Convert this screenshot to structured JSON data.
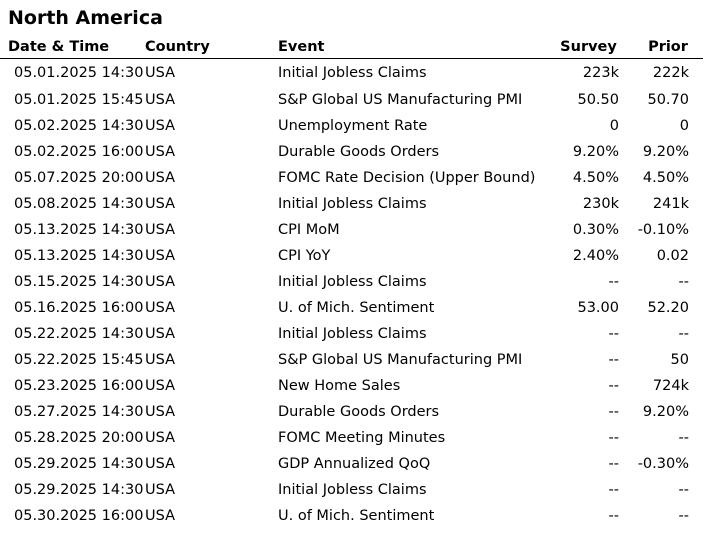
{
  "title": "North America",
  "columns": {
    "date": "Date & Time",
    "country": "Country",
    "event": "Event",
    "survey": "Survey",
    "prior": "Prior"
  },
  "rows": [
    {
      "date": "05.01.2025 14:30",
      "country": "USA",
      "event": "Initial Jobless Claims",
      "survey": "223k",
      "prior": "222k"
    },
    {
      "date": "05.01.2025 15:45",
      "country": "USA",
      "event": "S&P Global US Manufacturing PMI",
      "survey": "50.50",
      "prior": "50.70"
    },
    {
      "date": "05.02.2025 14:30",
      "country": "USA",
      "event": "Unemployment Rate",
      "survey": "0",
      "prior": "0"
    },
    {
      "date": "05.02.2025 16:00",
      "country": "USA",
      "event": "Durable Goods Orders",
      "survey": "9.20%",
      "prior": "9.20%"
    },
    {
      "date": "05.07.2025 20:00",
      "country": "USA",
      "event": "FOMC Rate Decision (Upper Bound)",
      "survey": "4.50%",
      "prior": "4.50%"
    },
    {
      "date": "05.08.2025 14:30",
      "country": "USA",
      "event": "Initial Jobless Claims",
      "survey": "230k",
      "prior": "241k"
    },
    {
      "date": "05.13.2025 14:30",
      "country": "USA",
      "event": "CPI MoM",
      "survey": "0.30%",
      "prior": "-0.10%"
    },
    {
      "date": "05.13.2025 14:30",
      "country": "USA",
      "event": "CPI YoY",
      "survey": "2.40%",
      "prior": "0.02"
    },
    {
      "date": "05.15.2025 14:30",
      "country": "USA",
      "event": "Initial Jobless Claims",
      "survey": "--",
      "prior": "--"
    },
    {
      "date": "05.16.2025 16:00",
      "country": "USA",
      "event": "U. of Mich. Sentiment",
      "survey": "53.00",
      "prior": "52.20"
    },
    {
      "date": "05.22.2025 14:30",
      "country": "USA",
      "event": "Initial Jobless Claims",
      "survey": "--",
      "prior": "--"
    },
    {
      "date": "05.22.2025 15:45",
      "country": "USA",
      "event": "S&P Global US Manufacturing PMI",
      "survey": "--",
      "prior": "50"
    },
    {
      "date": "05.23.2025 16:00",
      "country": "USA",
      "event": "New Home Sales",
      "survey": "--",
      "prior": "724k"
    },
    {
      "date": "05.27.2025 14:30",
      "country": "USA",
      "event": "Durable Goods Orders",
      "survey": "--",
      "prior": "9.20%"
    },
    {
      "date": "05.28.2025 20:00",
      "country": "USA",
      "event": "FOMC Meeting Minutes",
      "survey": "--",
      "prior": "--"
    },
    {
      "date": "05.29.2025 14:30",
      "country": "USA",
      "event": "GDP Annualized QoQ",
      "survey": "--",
      "prior": "-0.30%"
    },
    {
      "date": "05.29.2025 14:30",
      "country": "USA",
      "event": "Initial Jobless Claims",
      "survey": "--",
      "prior": "--"
    },
    {
      "date": "05.30.2025 16:00",
      "country": "USA",
      "event": "U. of Mich. Sentiment",
      "survey": "--",
      "prior": "--"
    }
  ]
}
